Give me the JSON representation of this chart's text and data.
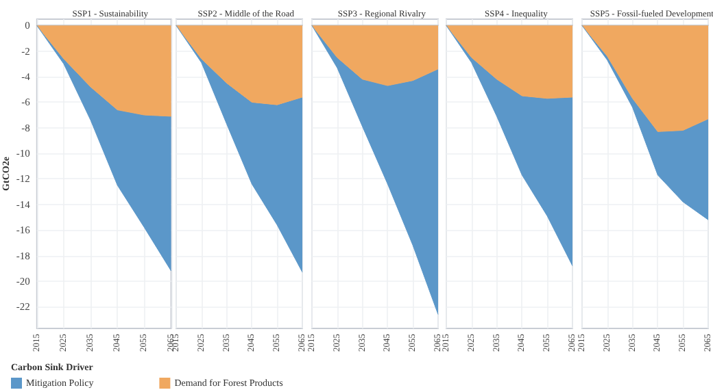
{
  "chart_data": [
    {
      "type": "area",
      "title": "SSP1 - Sustainability",
      "ylabel": "GtCO2e",
      "legend_title": "Carbon Sink Driver",
      "legend": "bottom",
      "stacked": true,
      "grid": true,
      "categories": [
        "2015",
        "2025",
        "2035",
        "2045",
        "2055",
        "2065"
      ],
      "ylim": [
        -23.7,
        0.5
      ],
      "yticks": [
        0,
        -2,
        -4,
        -6,
        -8,
        -10,
        -12,
        -14,
        -16,
        -18,
        -20,
        -22
      ],
      "series": [
        {
          "name": "Demand for Forest Products",
          "color": "#f0a860",
          "values": [
            0,
            -2.6,
            -4.8,
            -6.6,
            -7.0,
            -7.1
          ]
        },
        {
          "name": "Mitigation Policy",
          "color": "#5b97c9",
          "values": [
            0,
            -0.4,
            -2.6,
            -5.9,
            -8.8,
            -12.1
          ]
        }
      ]
    },
    {
      "type": "area",
      "title": "SSP2 - Middle of the Road",
      "stacked": true,
      "grid": true,
      "tick_labels": "x",
      "categories": [
        "2015",
        "2025",
        "2035",
        "2045",
        "2055",
        "2065"
      ],
      "ylim": [
        -23.7,
        0.5
      ],
      "series": [
        {
          "color": "#f0a860",
          "values": [
            0,
            -2.6,
            -4.5,
            -6.0,
            -6.2,
            -5.6
          ]
        },
        {
          "color": "#5b97c9",
          "values": [
            0,
            -0.3,
            -3.2,
            -6.4,
            -9.4,
            -13.7
          ]
        }
      ]
    },
    {
      "type": "area",
      "title": "SSP3 - Regional Rivalry",
      "stacked": true,
      "grid": true,
      "tick_labels": "x",
      "categories": [
        "2015",
        "2025",
        "2035",
        "2045",
        "2055",
        "2065"
      ],
      "ylim": [
        -23.7,
        0.5
      ],
      "series": [
        {
          "color": "#f0a860",
          "values": [
            0,
            -2.5,
            -4.2,
            -4.7,
            -4.3,
            -3.4
          ]
        },
        {
          "color": "#5b97c9",
          "values": [
            0,
            -0.8,
            -3.7,
            -7.7,
            -12.9,
            -19.2
          ]
        }
      ]
    },
    {
      "type": "area",
      "title": "SSP4 - Inequality",
      "stacked": true,
      "grid": true,
      "tick_labels": "x",
      "categories": [
        "2015",
        "2025",
        "2035",
        "2045",
        "2055",
        "2065"
      ],
      "ylim": [
        -23.7,
        0.5
      ],
      "series": [
        {
          "color": "#f0a860",
          "values": [
            0,
            -2.5,
            -4.2,
            -5.5,
            -5.7,
            -5.6
          ]
        },
        {
          "color": "#5b97c9",
          "values": [
            0,
            -0.4,
            -2.9,
            -6.2,
            -9.2,
            -13.2
          ]
        }
      ]
    },
    {
      "type": "area",
      "title": "SSP5 - Fossil-fueled Development",
      "stacked": true,
      "grid": true,
      "tick_labels": "x",
      "categories": [
        "2015",
        "2025",
        "2035",
        "2045",
        "2055",
        "2065"
      ],
      "ylim": [
        -23.7,
        0.5
      ],
      "series": [
        {
          "color": "#f0a860",
          "values": [
            0,
            -2.4,
            -5.7,
            -8.3,
            -8.2,
            -7.3
          ]
        },
        {
          "color": "#5b97c9",
          "values": [
            0,
            -0.3,
            -0.7,
            -3.4,
            -5.6,
            -7.9
          ]
        }
      ]
    }
  ]
}
